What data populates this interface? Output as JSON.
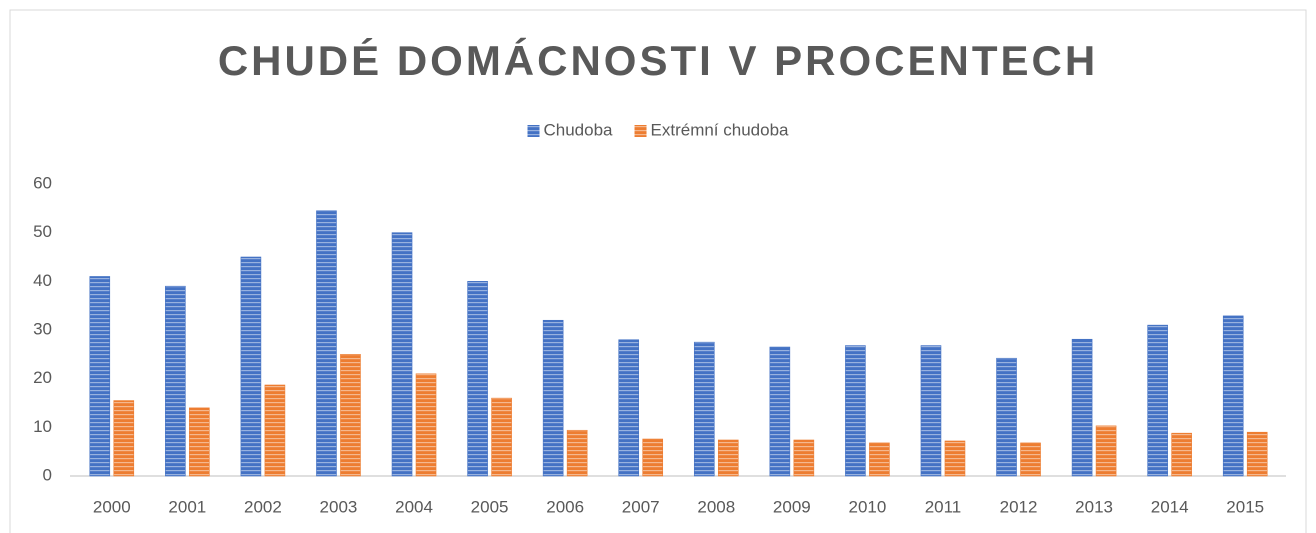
{
  "chart_data": {
    "type": "bar",
    "title": "CHUDÉ DOMÁCNOSTI V PROCENTECH",
    "categories": [
      "2000",
      "2001",
      "2002",
      "2003",
      "2004",
      "2005",
      "2006",
      "2007",
      "2008",
      "2009",
      "2010",
      "2011",
      "2012",
      "2013",
      "2014",
      "2015"
    ],
    "series": [
      {
        "name": "Chudoba",
        "color": "#4472c4",
        "values": [
          41,
          39,
          45,
          54.5,
          50,
          40,
          32,
          28,
          27.5,
          26.5,
          26.8,
          26.8,
          24.2,
          28.1,
          31,
          32.9
        ]
      },
      {
        "name": "Extrémní chudoba",
        "color": "#ed7d31",
        "values": [
          15.5,
          14,
          18.7,
          25,
          21,
          16,
          9.4,
          7.6,
          7.4,
          7.4,
          6.8,
          7.2,
          6.8,
          10.3,
          8.8,
          9
        ]
      }
    ],
    "ylim": [
      0,
      60
    ],
    "yticks": [
      0,
      10,
      20,
      30,
      40,
      50,
      60
    ],
    "grid": false,
    "legend": "top"
  }
}
